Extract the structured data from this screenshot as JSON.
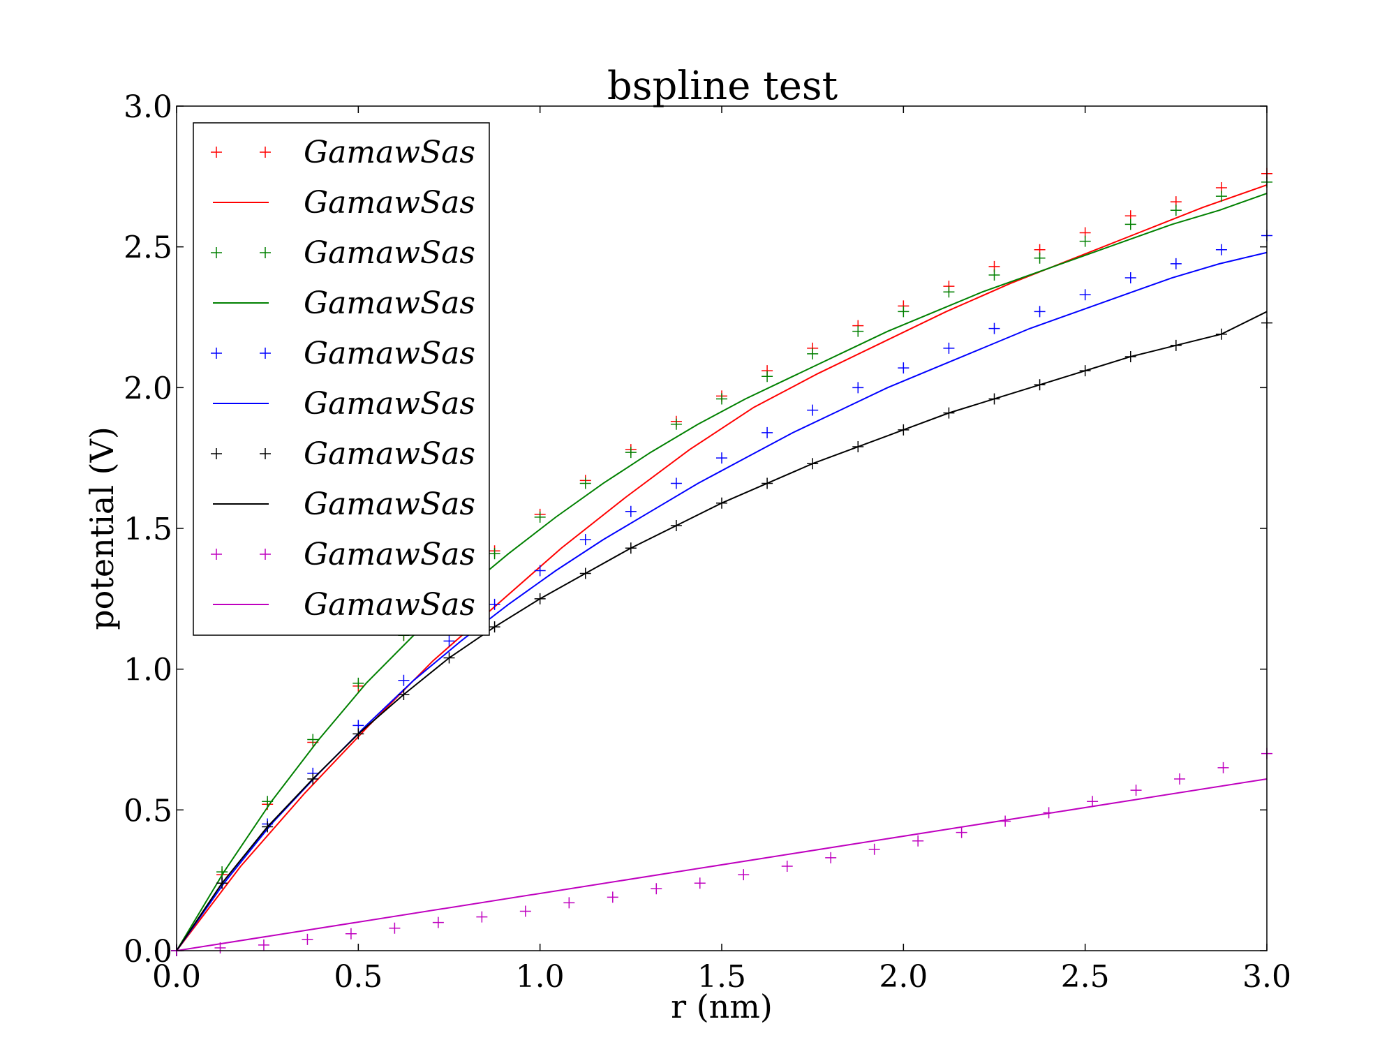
{
  "chart_data": {
    "type": "line",
    "title": "bspline test",
    "xlabel": "r (nm)",
    "ylabel": "potential (V)",
    "xlim": [
      0.0,
      3.0
    ],
    "ylim": [
      0.0,
      3.0
    ],
    "xticks": [
      "0.0",
      "0.5",
      "1.0",
      "1.5",
      "2.0",
      "2.5",
      "3.0"
    ],
    "yticks": [
      "0.0",
      "0.5",
      "1.0",
      "1.5",
      "2.0",
      "2.5",
      "3.0"
    ],
    "grid": false,
    "legend_position": "top-left",
    "x_step": 0.15,
    "series": [
      {
        "name": "GamawSas",
        "color": "#ff0000",
        "style": "markers",
        "values": [
          0.0,
          0.27,
          0.52,
          0.74,
          0.94,
          1.12,
          1.28,
          1.42,
          1.55,
          1.67,
          1.78,
          1.88,
          1.97,
          2.06,
          2.14,
          2.22,
          2.29,
          2.36,
          2.43,
          2.49,
          2.55,
          2.61,
          2.66,
          2.71,
          2.76
        ]
      },
      {
        "name": "GamawSas",
        "color": "#ff0000",
        "style": "line",
        "values": [
          0.0,
          0.3,
          0.56,
          0.8,
          1.03,
          1.23,
          1.43,
          1.61,
          1.78,
          1.93,
          2.05,
          2.16,
          2.27,
          2.37,
          2.46,
          2.55,
          2.64,
          2.72
        ]
      },
      {
        "name": "GamawSas",
        "color": "#008000",
        "style": "markers",
        "values": [
          0.0,
          0.28,
          0.53,
          0.75,
          0.95,
          1.12,
          1.27,
          1.41,
          1.54,
          1.66,
          1.77,
          1.87,
          1.96,
          2.04,
          2.12,
          2.2,
          2.27,
          2.34,
          2.4,
          2.46,
          2.52,
          2.58,
          2.63,
          2.68,
          2.73
        ]
      },
      {
        "name": "GamawSas",
        "color": "#008000",
        "style": "line",
        "values": [
          0.0,
          0.28,
          0.53,
          0.75,
          0.95,
          1.12,
          1.27,
          1.41,
          1.54,
          1.66,
          1.77,
          1.87,
          1.96,
          2.04,
          2.12,
          2.2,
          2.27,
          2.34,
          2.4,
          2.46,
          2.52,
          2.58,
          2.63,
          2.69
        ]
      },
      {
        "name": "GamawSas",
        "color": "#0000ff",
        "style": "markers",
        "values": [
          0.0,
          0.24,
          0.45,
          0.63,
          0.8,
          0.96,
          1.1,
          1.23,
          1.35,
          1.46,
          1.56,
          1.66,
          1.75,
          1.84,
          1.92,
          2.0,
          2.07,
          2.14,
          2.21,
          2.27,
          2.33,
          2.39,
          2.44,
          2.49,
          2.54
        ]
      },
      {
        "name": "GamawSas",
        "color": "#0000ff",
        "style": "line",
        "values": [
          0.0,
          0.24,
          0.45,
          0.63,
          0.8,
          0.96,
          1.1,
          1.23,
          1.35,
          1.46,
          1.56,
          1.66,
          1.75,
          1.84,
          1.92,
          2.0,
          2.07,
          2.14,
          2.21,
          2.27,
          2.33,
          2.39,
          2.44,
          2.48
        ]
      },
      {
        "name": "GamawSas",
        "color": "#000000",
        "style": "markers",
        "values": [
          0.0,
          0.24,
          0.44,
          0.61,
          0.77,
          0.91,
          1.04,
          1.15,
          1.25,
          1.34,
          1.43,
          1.51,
          1.59,
          1.66,
          1.73,
          1.79,
          1.85,
          1.91,
          1.96,
          2.01,
          2.06,
          2.11,
          2.15,
          2.19,
          2.23
        ]
      },
      {
        "name": "GamawSas",
        "color": "#000000",
        "style": "line",
        "values": [
          0.0,
          0.24,
          0.44,
          0.61,
          0.77,
          0.91,
          1.04,
          1.15,
          1.25,
          1.34,
          1.43,
          1.51,
          1.59,
          1.66,
          1.73,
          1.79,
          1.85,
          1.91,
          1.96,
          2.01,
          2.06,
          2.11,
          2.15,
          2.19,
          2.27
        ]
      },
      {
        "name": "GamawSas",
        "color": "#bf00bf",
        "style": "markers",
        "values": [
          0.0,
          0.01,
          0.02,
          0.04,
          0.06,
          0.08,
          0.1,
          0.12,
          0.14,
          0.17,
          0.19,
          0.22,
          0.24,
          0.27,
          0.3,
          0.33,
          0.36,
          0.39,
          0.42,
          0.46,
          0.49,
          0.53,
          0.57,
          0.61,
          0.65,
          0.7
        ]
      },
      {
        "name": "GamawSas",
        "color": "#bf00bf",
        "style": "line",
        "values": [
          0.0,
          0.61
        ]
      }
    ]
  }
}
